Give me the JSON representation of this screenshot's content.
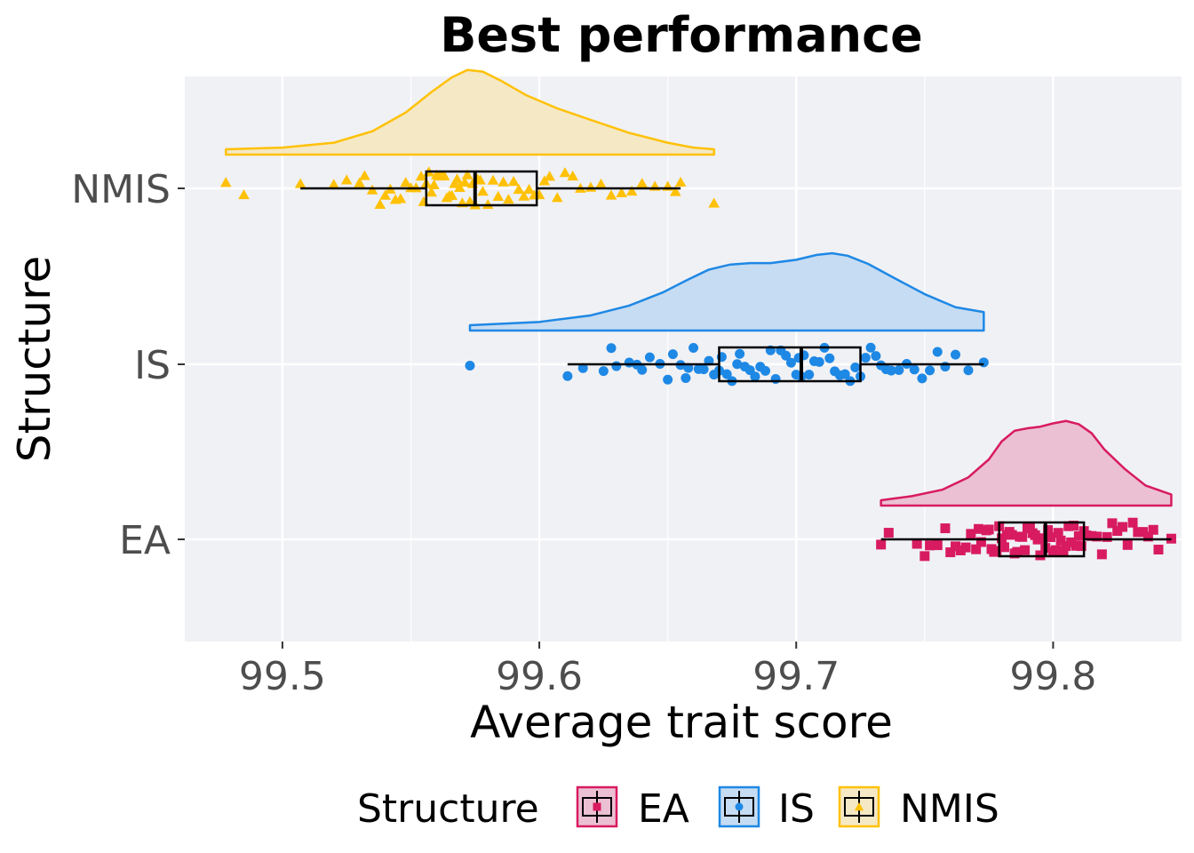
{
  "chart_data": {
    "type": "raincloud",
    "title": "Best performance",
    "xlabel": "Average trait score",
    "ylabel": "Structure",
    "xlim": [
      99.462,
      99.85
    ],
    "x_ticks": [
      99.5,
      99.6,
      99.7,
      99.8
    ],
    "x_tick_labels": [
      "99.5",
      "99.6",
      "99.7",
      "99.8"
    ],
    "categories": [
      "EA",
      "IS",
      "NMIS"
    ],
    "grid": true,
    "legend": {
      "title": "Structure",
      "position": "bottom",
      "entries": [
        "EA",
        "IS",
        "NMIS"
      ]
    },
    "series": [
      {
        "name": "EA",
        "color": "#d81b60",
        "fill": "#ebc0d2",
        "shape": "square",
        "box": {
          "min": 99.733,
          "q1": 99.779,
          "median": 99.797,
          "q3": 99.812,
          "max": 99.846
        },
        "density": {
          "x": [
            99.733,
            99.745,
            99.757,
            99.767,
            99.775,
            99.78,
            99.785,
            99.79,
            99.795,
            99.8,
            99.805,
            99.81,
            99.815,
            99.82,
            99.828,
            99.836,
            99.846
          ],
          "y": [
            0.0,
            0.05,
            0.13,
            0.28,
            0.5,
            0.72,
            0.85,
            0.88,
            0.9,
            0.94,
            0.97,
            0.93,
            0.82,
            0.62,
            0.38,
            0.18,
            0.07
          ]
        },
        "points": [
          99.733,
          99.736,
          99.747,
          99.75,
          99.752,
          99.755,
          99.758,
          99.76,
          99.762,
          99.764,
          99.766,
          99.768,
          99.77,
          99.771,
          99.772,
          99.774,
          99.775,
          99.776,
          99.777,
          99.778,
          99.779,
          99.78,
          99.781,
          99.782,
          99.783,
          99.784,
          99.785,
          99.786,
          99.787,
          99.788,
          99.789,
          99.79,
          99.791,
          99.792,
          99.793,
          99.794,
          99.795,
          99.796,
          99.797,
          99.798,
          99.799,
          99.8,
          99.801,
          99.802,
          99.803,
          99.804,
          99.805,
          99.806,
          99.807,
          99.808,
          99.809,
          99.81,
          99.811,
          99.812,
          99.813,
          99.815,
          99.817,
          99.819,
          99.821,
          99.823,
          99.825,
          99.827,
          99.829,
          99.831,
          99.833,
          99.835,
          99.837,
          99.839,
          99.841,
          99.846
        ]
      },
      {
        "name": "IS",
        "color": "#1e88e5",
        "fill": "#c6dcf2",
        "shape": "circle",
        "box": {
          "min": 99.611,
          "q1": 99.67,
          "median": 99.702,
          "q3": 99.725,
          "max": 99.773
        },
        "density": {
          "x": [
            99.573,
            99.6,
            99.62,
            99.635,
            99.648,
            99.658,
            99.666,
            99.674,
            99.682,
            99.69,
            99.7,
            99.708,
            99.714,
            99.72,
            99.728,
            99.738,
            99.75,
            99.762,
            99.773
          ],
          "y": [
            0.0,
            0.04,
            0.12,
            0.24,
            0.4,
            0.56,
            0.68,
            0.74,
            0.76,
            0.76,
            0.8,
            0.86,
            0.88,
            0.85,
            0.75,
            0.58,
            0.38,
            0.22,
            0.16
          ]
        },
        "points": [
          99.573,
          99.611,
          99.617,
          99.625,
          99.628,
          99.63,
          99.635,
          99.638,
          99.64,
          99.643,
          99.647,
          99.65,
          99.652,
          99.655,
          99.657,
          99.658,
          99.66,
          99.662,
          99.664,
          99.666,
          99.668,
          99.67,
          99.671,
          99.673,
          99.675,
          99.677,
          99.678,
          99.68,
          99.682,
          99.684,
          99.686,
          99.688,
          99.69,
          99.692,
          99.694,
          99.696,
          99.698,
          99.7,
          99.701,
          99.702,
          99.703,
          99.705,
          99.707,
          99.709,
          99.711,
          99.713,
          99.715,
          99.717,
          99.719,
          99.721,
          99.723,
          99.725,
          99.727,
          99.729,
          99.731,
          99.733,
          99.735,
          99.737,
          99.74,
          99.743,
          99.746,
          99.749,
          99.752,
          99.755,
          99.758,
          99.762,
          99.767,
          99.773
        ]
      },
      {
        "name": "NMIS",
        "color": "#ffc107",
        "fill": "#f5e8c4",
        "shape": "triangle",
        "box": {
          "min": 99.507,
          "q1": 99.556,
          "median": 99.575,
          "q3": 99.599,
          "max": 99.655
        },
        "density": {
          "x": [
            99.478,
            99.5,
            99.52,
            99.535,
            99.548,
            99.558,
            99.566,
            99.572,
            99.578,
            99.585,
            99.595,
            99.607,
            99.62,
            99.635,
            99.65,
            99.66,
            99.668
          ],
          "y": [
            0.0,
            0.02,
            0.08,
            0.22,
            0.45,
            0.7,
            0.88,
            0.97,
            0.95,
            0.84,
            0.66,
            0.5,
            0.36,
            0.2,
            0.08,
            0.02,
            0.0
          ]
        },
        "points": [
          99.478,
          99.485,
          99.507,
          99.52,
          99.525,
          99.53,
          99.532,
          99.535,
          99.538,
          99.54,
          99.542,
          99.544,
          99.546,
          99.548,
          99.55,
          99.552,
          99.554,
          99.555,
          99.556,
          99.557,
          99.558,
          99.559,
          99.56,
          99.561,
          99.562,
          99.563,
          99.564,
          99.565,
          99.566,
          99.567,
          99.568,
          99.569,
          99.57,
          99.571,
          99.572,
          99.573,
          99.574,
          99.575,
          99.576,
          99.577,
          99.578,
          99.58,
          99.582,
          99.584,
          99.586,
          99.588,
          99.59,
          99.592,
          99.594,
          99.596,
          99.598,
          99.6,
          99.602,
          99.604,
          99.607,
          99.61,
          99.613,
          99.616,
          99.62,
          99.624,
          99.628,
          99.632,
          99.636,
          99.64,
          99.645,
          99.65,
          99.653,
          99.655,
          99.668
        ]
      }
    ]
  }
}
